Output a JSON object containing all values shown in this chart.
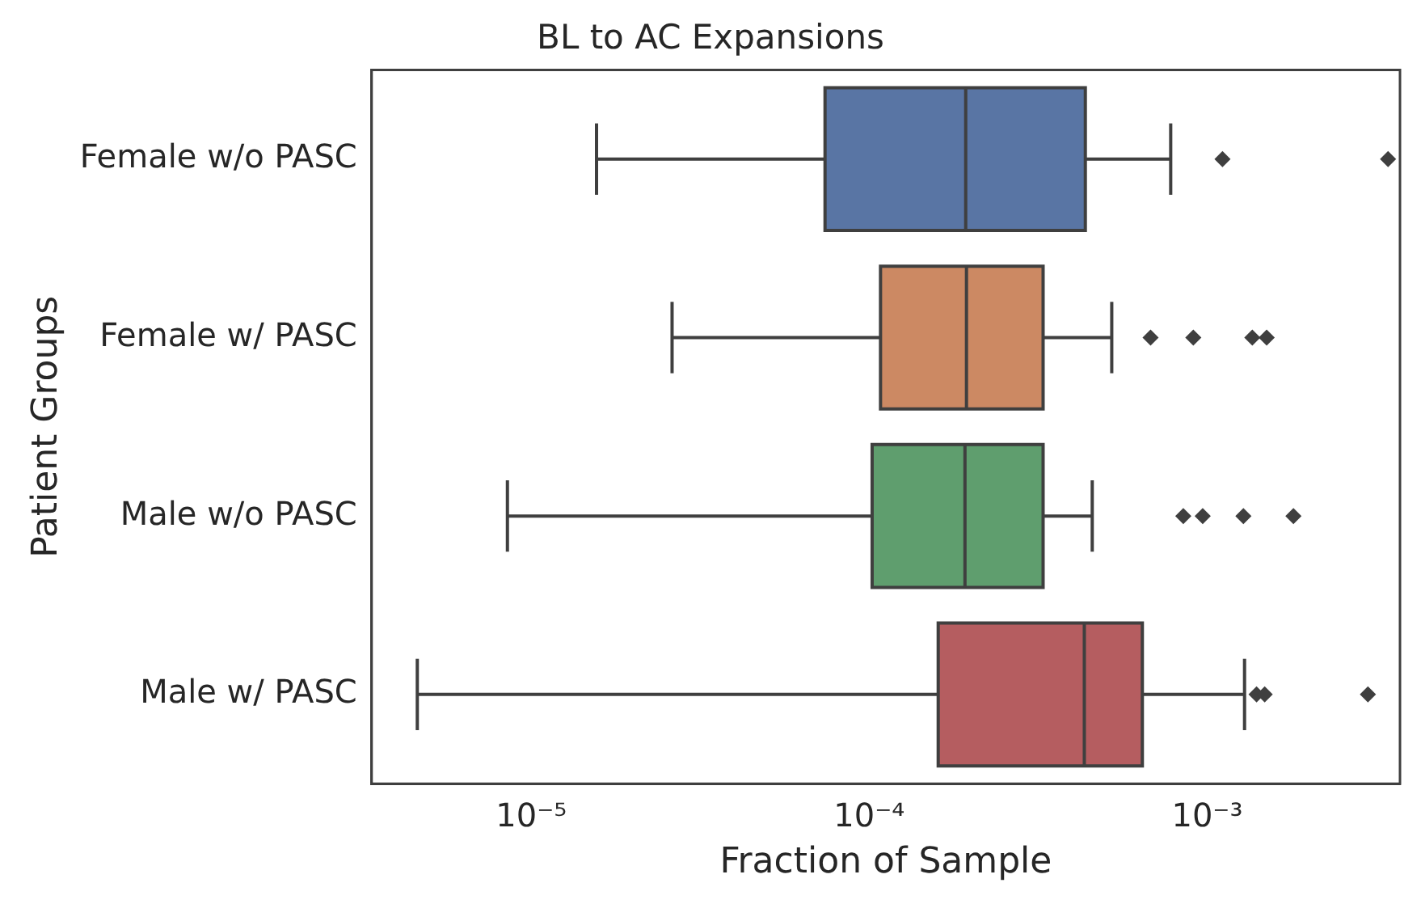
{
  "chart_data": {
    "type": "box",
    "orientation": "horizontal",
    "title": "BL to AC Expansions",
    "xlabel": "Fraction of Sample",
    "ylabel": "Patient Groups",
    "categories": [
      "Female w/o PASC",
      "Female w/ PASC",
      "Male w/o PASC",
      "Male w/ PASC"
    ],
    "colors": [
      "#5975a4",
      "#cc8963",
      "#5f9e6e",
      "#b55d60"
    ],
    "boxes": [
      {
        "low": 1.56e-05,
        "q1": 7.4e-05,
        "median": 0.000193,
        "q3": 0.000436,
        "high": 0.00078,
        "outliers": [
          0.00111,
          0.00343
        ]
      },
      {
        "low": 2.61e-05,
        "q1": 0.000108,
        "median": 0.000194,
        "q3": 0.000327,
        "high": 0.000522,
        "outliers": [
          0.00068,
          0.00091,
          0.00136,
          0.0015
        ]
      },
      {
        "low": 8.5e-06,
        "q1": 0.000102,
        "median": 0.000192,
        "q3": 0.000327,
        "high": 0.000457,
        "outliers": [
          0.00085,
          0.00097,
          0.00128,
          0.0018
        ]
      },
      {
        "low": 4.6e-06,
        "q1": 0.00016,
        "median": 0.000433,
        "q3": 0.000643,
        "high": 0.00129,
        "outliers": [
          0.0014,
          0.00148,
          0.00299
        ]
      }
    ],
    "marker": "diamond",
    "log": "x",
    "xlim": [
      3.37e-06,
      0.00372
    ],
    "xticks": [
      {
        "value": 1e-05,
        "label": "10⁻⁵"
      },
      {
        "value": 0.0001,
        "label": "10⁻⁴"
      },
      {
        "value": 0.001,
        "label": "10⁻³"
      }
    ]
  }
}
